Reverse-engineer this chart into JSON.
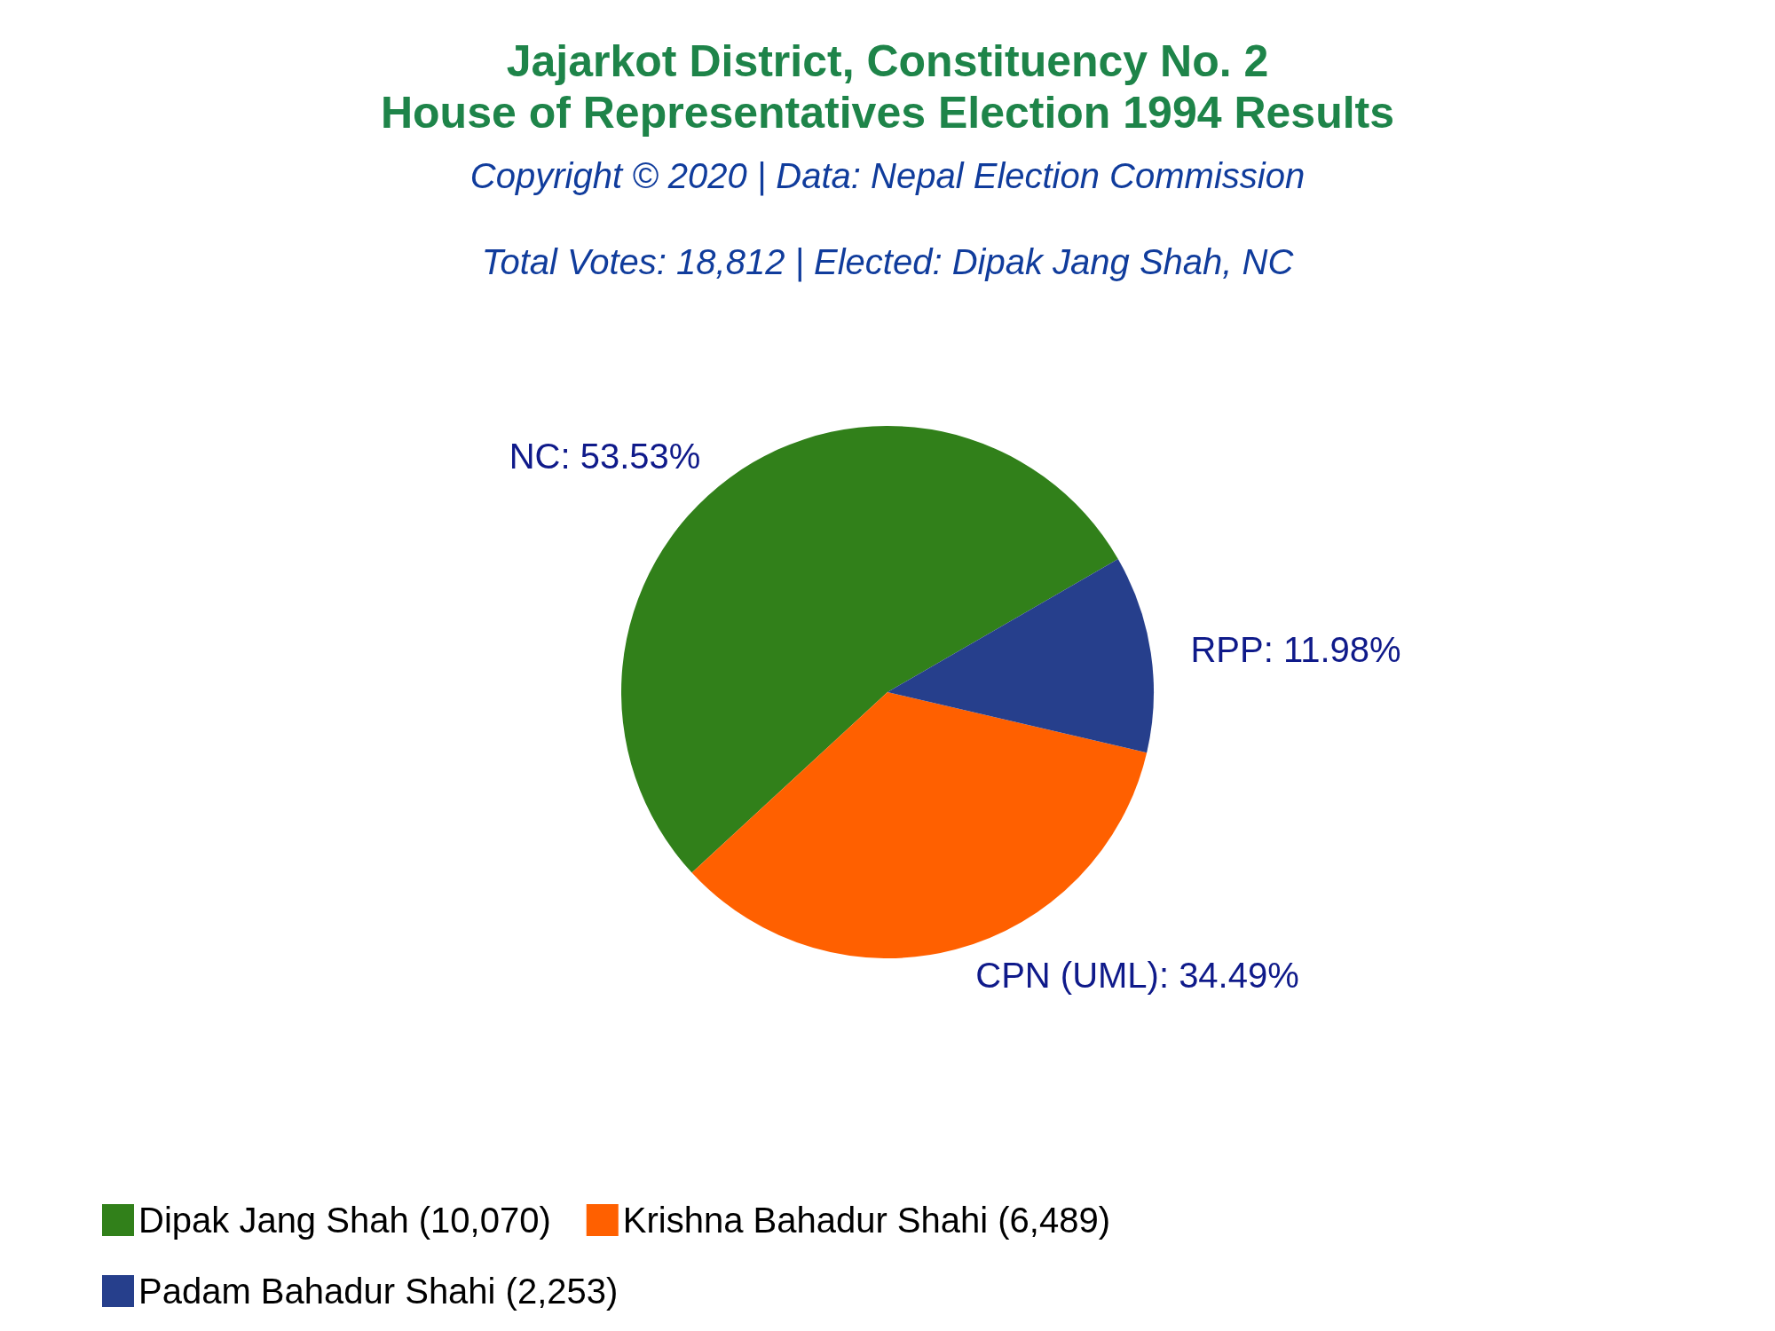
{
  "chart_data": {
    "type": "pie",
    "title": "Jajarkot District, Constituency No. 2\nHouse of Representatives Election 1994 Results",
    "subtitle": "Copyright © 2020 | Data: Nepal Election Commission",
    "annotations": [
      "Total Votes: 18,812 | Elected: Dipak Jang Shah, NC"
    ],
    "categories": [
      "Dipak Jang Shah (10,070)",
      "Krishna Bahadur Shahi (6,489)",
      "Padam Bahadur Shahi (2,253)"
    ],
    "values": [
      53.53,
      34.49,
      11.98
    ],
    "value_labels": [
      "NC: 53.53%",
      "CPN (UML): 34.49%",
      "RPP: 11.98%"
    ],
    "colors": [
      "#31801a",
      "#ff6000",
      "#263f8c"
    ],
    "legend": "bottom left"
  }
}
